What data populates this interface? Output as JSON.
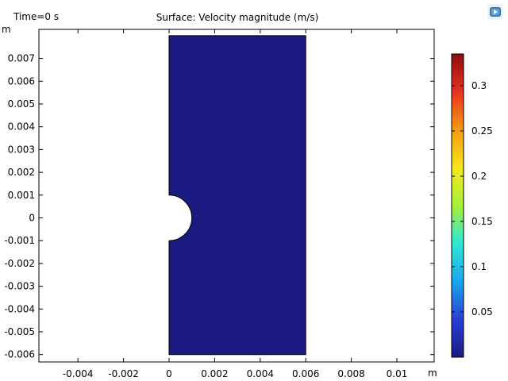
{
  "viewer": {
    "time_label": "Time=0 s",
    "title": "Surface: Velocity magnitude (m/s)",
    "corner_icon": "play-icon"
  },
  "chart_data": {
    "type": "heatmap",
    "title": "Surface: Velocity magnitude (m/s)",
    "time": "Time=0 s",
    "x_unit": "m",
    "y_unit": "m",
    "xlim": [
      -0.0057,
      0.0115
    ],
    "ylim": [
      -0.0063,
      0.0079
    ],
    "x_ticks": [
      -0.004,
      -0.002,
      0,
      0.002,
      0.004,
      0.006,
      0.008,
      0.01
    ],
    "x_tick_labels": [
      "-0.004",
      "-0.002",
      "0",
      "0.002",
      "0.004",
      "0.006",
      "0.008",
      "0.01"
    ],
    "y_ticks": [
      0.007,
      0.006,
      0.005,
      0.004,
      0.003,
      0.002,
      0.001,
      0,
      -0.001,
      -0.002,
      -0.003,
      -0.004,
      -0.005,
      -0.006
    ],
    "y_tick_labels": [
      "0.007",
      "0.006",
      "0.005",
      "0.004",
      "0.003",
      "0.002",
      "0.001",
      "0",
      "-0.001",
      "-0.002",
      "-0.003",
      "-0.004",
      "-0.005",
      "-0.006"
    ],
    "domain": {
      "x_range": [
        0,
        0.006
      ],
      "y_range": [
        -0.006,
        0.008
      ],
      "half_circle_hole": {
        "center": [
          0,
          0
        ],
        "radius": 0.001
      }
    },
    "field_value": 0,
    "field_color": "#1a1a80",
    "colorbar": {
      "min": 0,
      "max": 0.335,
      "ticks": [
        0.05,
        0.1,
        0.15,
        0.2,
        0.25,
        0.3
      ],
      "tick_labels": [
        "0.05",
        "0.1",
        "0.15",
        "0.2",
        "0.25",
        "0.3"
      ],
      "colormap": [
        "#1a1a80",
        "#2a3fd6",
        "#1aa6ef",
        "#2ee8d4",
        "#a8f03a",
        "#f5e81c",
        "#f59a12",
        "#e8321e",
        "#8a0d0d"
      ]
    }
  }
}
